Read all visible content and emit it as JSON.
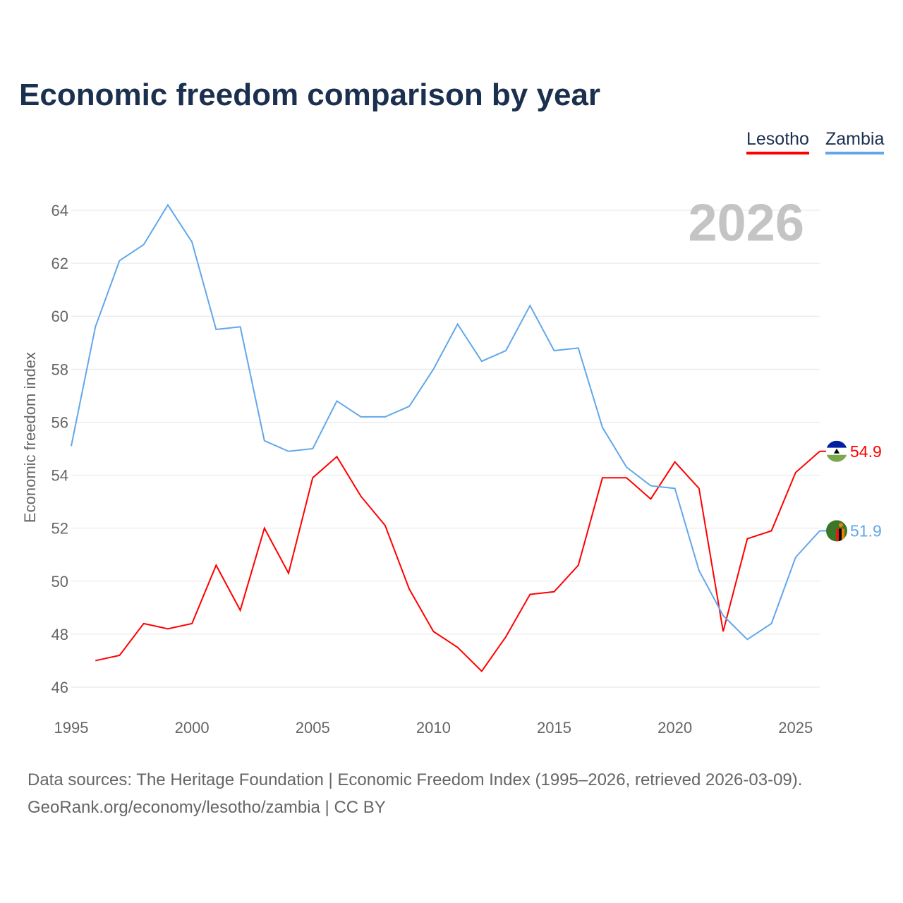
{
  "title": "Economic freedom comparison by year",
  "legend": [
    {
      "label": "Lesotho",
      "color": "#ff0000"
    },
    {
      "label": "Zambia",
      "color": "#62a7ea"
    }
  ],
  "year_display": "2026",
  "footer": {
    "line1": "Data sources: The Heritage Foundation | Economic Freedom Index (1995–2026, retrieved 2026-03-09).",
    "line2": "GeoRank.org/economy/lesotho/zambia | CC BY"
  },
  "chart_data": {
    "type": "line",
    "title": "Economic freedom comparison by year",
    "xlabel": "",
    "ylabel": "Economic freedom index",
    "xlim": [
      1995,
      2026
    ],
    "ylim": [
      46,
      64
    ],
    "xticks": [
      "1995",
      "2000",
      "2005",
      "2010",
      "2015",
      "2020",
      "2025"
    ],
    "yticks": [
      "46",
      "48",
      "50",
      "52",
      "54",
      "56",
      "58",
      "60",
      "62",
      "64"
    ],
    "grid": true,
    "legend_position": "top-right",
    "series": [
      {
        "name": "Lesotho",
        "color": "#ff0000",
        "end_label": "54.9",
        "flag": "lesotho-flag",
        "x": [
          1996,
          1997,
          1998,
          1999,
          2000,
          2001,
          2002,
          2003,
          2004,
          2005,
          2006,
          2007,
          2008,
          2009,
          2010,
          2011,
          2012,
          2013,
          2014,
          2015,
          2016,
          2017,
          2018,
          2019,
          2020,
          2021,
          2022,
          2023,
          2024,
          2025,
          2026
        ],
        "values": [
          47.0,
          47.2,
          48.4,
          48.2,
          48.4,
          50.6,
          48.9,
          52.0,
          50.3,
          53.9,
          54.7,
          53.2,
          52.1,
          49.7,
          48.1,
          47.5,
          46.6,
          47.9,
          49.5,
          49.6,
          50.6,
          53.9,
          53.9,
          53.1,
          54.5,
          53.5,
          48.1,
          51.6,
          51.9,
          54.1,
          54.9
        ]
      },
      {
        "name": "Zambia",
        "color": "#62a7ea",
        "end_label": "51.9",
        "flag": "zambia-flag",
        "x": [
          1995,
          1996,
          1997,
          1998,
          1999,
          2000,
          2001,
          2002,
          2003,
          2004,
          2005,
          2006,
          2007,
          2008,
          2009,
          2010,
          2011,
          2012,
          2013,
          2014,
          2015,
          2016,
          2017,
          2018,
          2019,
          2020,
          2021,
          2022,
          2023,
          2024,
          2025,
          2026
        ],
        "values": [
          55.1,
          59.6,
          62.1,
          62.7,
          64.2,
          62.8,
          59.5,
          59.6,
          55.3,
          54.9,
          55.0,
          56.8,
          56.2,
          56.2,
          56.6,
          58.0,
          59.7,
          58.3,
          58.7,
          60.4,
          58.7,
          58.8,
          55.8,
          54.3,
          53.6,
          53.5,
          50.4,
          48.7,
          47.8,
          48.4,
          50.9,
          51.9
        ]
      }
    ]
  }
}
